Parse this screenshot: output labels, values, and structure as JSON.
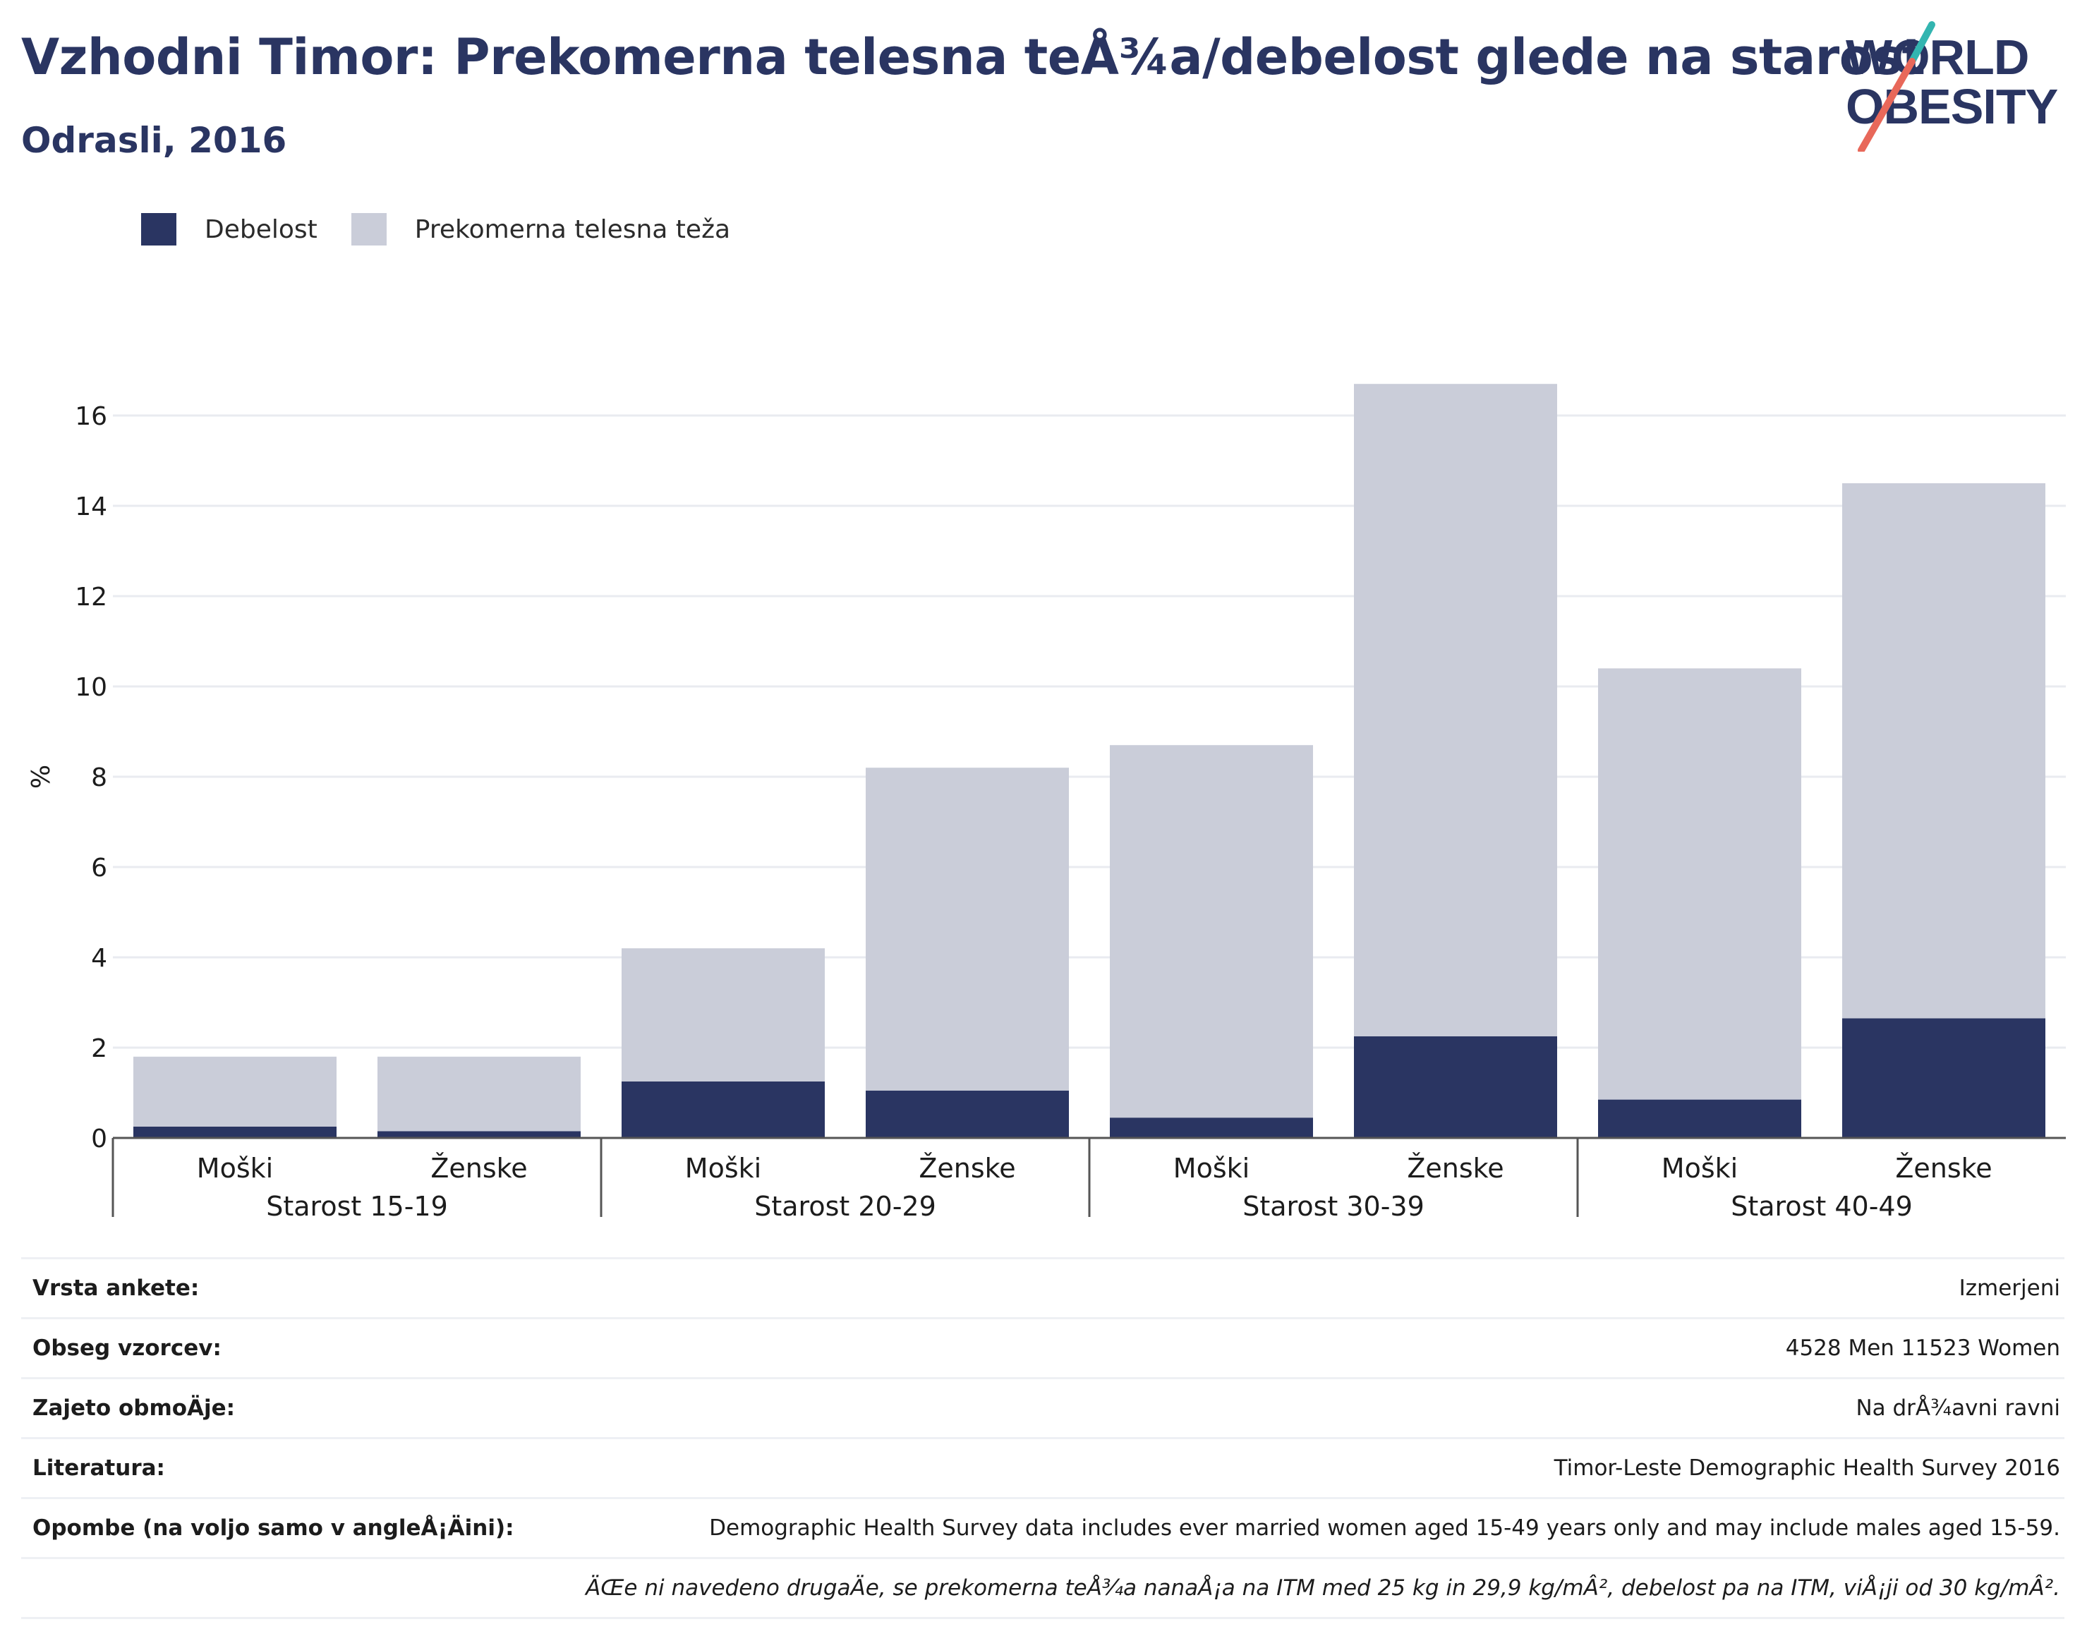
{
  "header": {
    "title": "Vzhodni Timor: Prekomerna telesna teÅ¾a/debelost glede na starost",
    "subtitle": "Odrasli, 2016"
  },
  "logo": {
    "line1": "WORLD",
    "line2": "OBESITY",
    "colors": {
      "text": "#2a3562",
      "slash_red": "#e8685a",
      "slash_teal": "#33b5b0"
    }
  },
  "legend": [
    {
      "label": "Debelost",
      "color": "#2a3562"
    },
    {
      "label": "Prekomerna telesna teža",
      "color": "#cacdd9"
    }
  ],
  "chart_data": {
    "type": "bar",
    "stacked": true,
    "ylabel": "%",
    "ylim": [
      0,
      17
    ],
    "yticks": [
      0,
      2,
      4,
      6,
      8,
      10,
      12,
      14,
      16
    ],
    "grid": true,
    "legend_position": "top-left",
    "groups": [
      "Starost 15-19",
      "Starost 20-29",
      "Starost 30-39",
      "Starost 40-49"
    ],
    "categories": [
      "Moški",
      "Ženske",
      "Moški",
      "Ženske",
      "Moški",
      "Ženske",
      "Moški",
      "Ženske"
    ],
    "series": [
      {
        "name": "Debelost",
        "color": "#2a3562",
        "values": [
          0.25,
          0.15,
          1.25,
          1.05,
          0.45,
          2.25,
          0.85,
          2.65
        ]
      },
      {
        "name": "Prekomerna telesna teža",
        "color": "#cacdd9",
        "values": [
          1.55,
          1.65,
          2.95,
          7.15,
          8.25,
          14.45,
          9.55,
          11.85
        ]
      }
    ],
    "totals": [
      1.8,
      1.8,
      4.2,
      8.2,
      8.7,
      16.7,
      10.4,
      14.5
    ]
  },
  "info": [
    {
      "label": "Vrsta ankete:",
      "value": "Izmerjeni"
    },
    {
      "label": "Obseg vzorcev:",
      "value": "4528 Men 11523 Women"
    },
    {
      "label": "Zajeto obmoÄje:",
      "value": "Na drÅ¾avni ravni"
    },
    {
      "label": "Literatura:",
      "value": "Timor-Leste Demographic Health Survey 2016"
    },
    {
      "label": "Opombe (na voljo samo v angleÅ¡Äini):",
      "value": "Demographic Health Survey data includes ever married women aged 15-49 years only and may include males aged 15-59."
    },
    {
      "label": "",
      "value": "ÄŒe ni navedeno drugaÄe, se prekomerna teÅ¾a nanaÅ¡a na ITM med 25 kg in 29,9 kg/mÂ², debelost pa na ITM, viÅ¡ji od 30 kg/mÂ²."
    }
  ]
}
